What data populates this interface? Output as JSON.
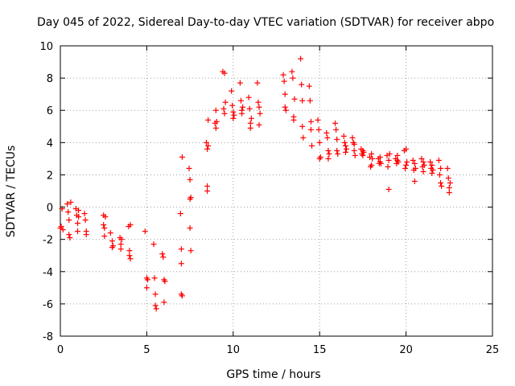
{
  "chart_data": {
    "type": "scatter",
    "title": "Day 045 of 2022, Sidereal Day-to-day VTEC variation (SDTVAR) for receiver abpo",
    "xlabel": "GPS time / hours",
    "ylabel": "SDTVAR / TECUs",
    "xlim": [
      0,
      25
    ],
    "ylim": [
      -8,
      10
    ],
    "xticks": [
      "0",
      "5",
      "10",
      "15",
      "20",
      "25"
    ],
    "yticks": [
      "-8",
      "-6",
      "-4",
      "-2",
      "0",
      "2",
      "4",
      "6",
      "8",
      "10"
    ],
    "grid": true,
    "marker": "+",
    "color": "#ff0000",
    "series": [
      {
        "name": "SDTVAR",
        "points": [
          [
            0.0,
            -1.3
          ],
          [
            0.05,
            -1.2
          ],
          [
            0.1,
            -0.1
          ],
          [
            0.15,
            -1.4
          ],
          [
            0.4,
            0.2
          ],
          [
            0.45,
            -0.3
          ],
          [
            0.5,
            -0.8
          ],
          [
            0.5,
            -1.7
          ],
          [
            0.55,
            -1.9
          ],
          [
            0.6,
            0.3
          ],
          [
            0.9,
            -0.1
          ],
          [
            0.95,
            -0.5
          ],
          [
            1.0,
            -1.0
          ],
          [
            1.0,
            -1.5
          ],
          [
            1.05,
            -0.2
          ],
          [
            1.05,
            -0.6
          ],
          [
            1.4,
            -0.4
          ],
          [
            1.45,
            -0.8
          ],
          [
            1.5,
            -1.5
          ],
          [
            1.5,
            -1.7
          ],
          [
            2.5,
            -0.5
          ],
          [
            2.5,
            -1.1
          ],
          [
            2.55,
            -1.3
          ],
          [
            2.55,
            -1.8
          ],
          [
            2.6,
            -0.6
          ],
          [
            2.9,
            -1.6
          ],
          [
            3.0,
            -2.1
          ],
          [
            3.0,
            -2.5
          ],
          [
            3.05,
            -2.4
          ],
          [
            3.45,
            -1.9
          ],
          [
            3.5,
            -2.3
          ],
          [
            3.5,
            -2.6
          ],
          [
            3.55,
            -2.0
          ],
          [
            3.95,
            -1.2
          ],
          [
            4.0,
            -2.7
          ],
          [
            4.0,
            -3.0
          ],
          [
            4.05,
            -1.1
          ],
          [
            4.05,
            -3.2
          ],
          [
            4.9,
            -1.5
          ],
          [
            5.0,
            -4.4
          ],
          [
            5.0,
            -5.0
          ],
          [
            5.05,
            -4.5
          ],
          [
            5.4,
            -2.3
          ],
          [
            5.45,
            -4.4
          ],
          [
            5.5,
            -5.4
          ],
          [
            5.5,
            -6.1
          ],
          [
            5.55,
            -6.3
          ],
          [
            5.9,
            -2.9
          ],
          [
            5.95,
            -3.1
          ],
          [
            6.0,
            -4.5
          ],
          [
            6.0,
            -5.9
          ],
          [
            6.05,
            -4.6
          ],
          [
            6.95,
            -0.4
          ],
          [
            7.0,
            -2.6
          ],
          [
            7.0,
            -3.5
          ],
          [
            7.0,
            -5.4
          ],
          [
            7.05,
            3.1
          ],
          [
            7.05,
            -5.5
          ],
          [
            7.45,
            2.4
          ],
          [
            7.5,
            1.7
          ],
          [
            7.5,
            0.5
          ],
          [
            7.5,
            -1.3
          ],
          [
            7.55,
            0.6
          ],
          [
            7.55,
            -2.7
          ],
          [
            8.45,
            4.0
          ],
          [
            8.5,
            3.6
          ],
          [
            8.5,
            1.3
          ],
          [
            8.5,
            1.0
          ],
          [
            8.55,
            5.4
          ],
          [
            8.55,
            3.8
          ],
          [
            8.95,
            5.2
          ],
          [
            9.0,
            6.0
          ],
          [
            9.0,
            4.9
          ],
          [
            9.05,
            5.3
          ],
          [
            9.4,
            8.4
          ],
          [
            9.45,
            6.1
          ],
          [
            9.5,
            5.8
          ],
          [
            9.5,
            8.3
          ],
          [
            9.55,
            6.5
          ],
          [
            9.9,
            7.2
          ],
          [
            9.95,
            6.3
          ],
          [
            10.0,
            5.9
          ],
          [
            10.0,
            5.5
          ],
          [
            10.05,
            5.7
          ],
          [
            10.4,
            7.7
          ],
          [
            10.45,
            6.6
          ],
          [
            10.5,
            5.8
          ],
          [
            10.5,
            6.0
          ],
          [
            10.55,
            6.2
          ],
          [
            10.9,
            6.8
          ],
          [
            10.95,
            6.1
          ],
          [
            11.0,
            5.2
          ],
          [
            11.0,
            4.9
          ],
          [
            11.05,
            5.5
          ],
          [
            11.4,
            7.7
          ],
          [
            11.45,
            6.5
          ],
          [
            11.5,
            6.2
          ],
          [
            11.5,
            5.1
          ],
          [
            11.55,
            5.8
          ],
          [
            12.9,
            8.2
          ],
          [
            12.95,
            7.8
          ],
          [
            13.0,
            7.0
          ],
          [
            13.0,
            6.2
          ],
          [
            13.05,
            6.0
          ],
          [
            13.4,
            8.4
          ],
          [
            13.45,
            8.0
          ],
          [
            13.5,
            5.6
          ],
          [
            13.5,
            5.4
          ],
          [
            13.55,
            6.7
          ],
          [
            13.9,
            9.2
          ],
          [
            13.95,
            7.6
          ],
          [
            14.0,
            6.6
          ],
          [
            14.0,
            5.0
          ],
          [
            14.05,
            4.3
          ],
          [
            14.4,
            7.5
          ],
          [
            14.45,
            6.6
          ],
          [
            14.5,
            5.3
          ],
          [
            14.5,
            4.8
          ],
          [
            14.55,
            3.8
          ],
          [
            14.9,
            5.4
          ],
          [
            14.95,
            4.8
          ],
          [
            15.0,
            4.0
          ],
          [
            15.0,
            3.0
          ],
          [
            15.05,
            3.1
          ],
          [
            15.4,
            4.6
          ],
          [
            15.45,
            4.3
          ],
          [
            15.5,
            3.5
          ],
          [
            15.5,
            3.0
          ],
          [
            15.55,
            3.3
          ],
          [
            15.9,
            5.2
          ],
          [
            15.95,
            4.8
          ],
          [
            16.0,
            4.2
          ],
          [
            16.0,
            3.5
          ],
          [
            16.05,
            3.3
          ],
          [
            16.4,
            4.4
          ],
          [
            16.45,
            4.0
          ],
          [
            16.5,
            3.8
          ],
          [
            16.5,
            3.4
          ],
          [
            16.55,
            3.6
          ],
          [
            16.9,
            4.3
          ],
          [
            16.95,
            4.0
          ],
          [
            17.0,
            3.9
          ],
          [
            17.0,
            3.5
          ],
          [
            17.05,
            3.2
          ],
          [
            17.4,
            3.6
          ],
          [
            17.45,
            3.3
          ],
          [
            17.5,
            3.5
          ],
          [
            17.5,
            3.2
          ],
          [
            17.55,
            3.4
          ],
          [
            17.9,
            3.1
          ],
          [
            17.95,
            2.5
          ],
          [
            18.0,
            3.3
          ],
          [
            18.0,
            2.6
          ],
          [
            18.05,
            3.0
          ],
          [
            18.4,
            3.0
          ],
          [
            18.45,
            2.7
          ],
          [
            18.5,
            2.8
          ],
          [
            18.5,
            3.1
          ],
          [
            18.55,
            2.7
          ],
          [
            18.9,
            3.2
          ],
          [
            18.95,
            2.5
          ],
          [
            19.0,
            1.1
          ],
          [
            19.0,
            2.9
          ],
          [
            19.05,
            3.3
          ],
          [
            19.4,
            3.0
          ],
          [
            19.45,
            2.7
          ],
          [
            19.5,
            2.9
          ],
          [
            19.5,
            3.2
          ],
          [
            19.55,
            2.8
          ],
          [
            19.9,
            3.5
          ],
          [
            19.95,
            2.4
          ],
          [
            20.0,
            3.6
          ],
          [
            20.0,
            2.6
          ],
          [
            20.05,
            2.8
          ],
          [
            20.4,
            2.9
          ],
          [
            20.45,
            2.3
          ],
          [
            20.5,
            1.6
          ],
          [
            20.5,
            2.7
          ],
          [
            20.55,
            2.4
          ],
          [
            20.9,
            3.0
          ],
          [
            20.95,
            2.5
          ],
          [
            21.0,
            2.8
          ],
          [
            21.0,
            2.2
          ],
          [
            21.05,
            2.6
          ],
          [
            21.4,
            2.8
          ],
          [
            21.45,
            2.4
          ],
          [
            21.5,
            2.6
          ],
          [
            21.5,
            2.1
          ],
          [
            21.55,
            2.3
          ],
          [
            21.9,
            2.9
          ],
          [
            21.95,
            2.0
          ],
          [
            22.0,
            1.5
          ],
          [
            22.0,
            2.4
          ],
          [
            22.05,
            1.3
          ],
          [
            22.4,
            2.4
          ],
          [
            22.45,
            1.8
          ],
          [
            22.5,
            1.2
          ],
          [
            22.5,
            0.9
          ],
          [
            22.55,
            1.5
          ]
        ]
      }
    ]
  }
}
